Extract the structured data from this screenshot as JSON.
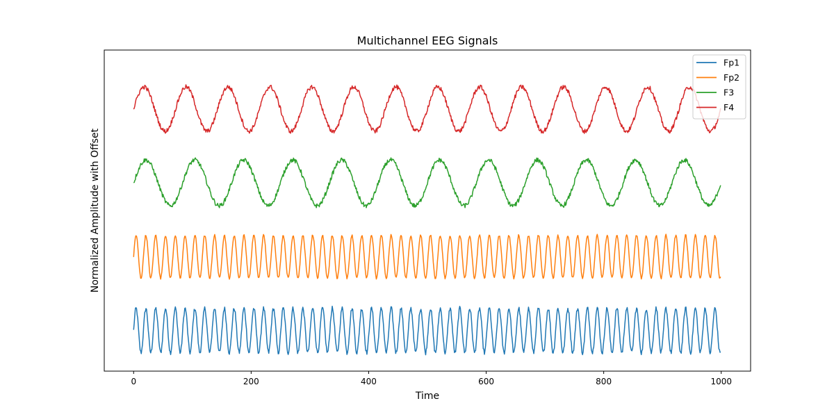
{
  "chart_data": {
    "type": "line",
    "title": "Multichannel EEG Signals",
    "xlabel": "Time",
    "ylabel": "Normalized Amplitude with Offset",
    "xlim": [
      -50,
      1050
    ],
    "ylim": [
      -1.1,
      7.6
    ],
    "x_ticks": [
      0,
      200,
      400,
      600,
      800,
      1000
    ],
    "y_ticks": [],
    "grid": false,
    "legend_position": "top-right",
    "n_samples": 1000,
    "series": [
      {
        "name": "Fp1",
        "color": "#1f77b4",
        "offset": 0,
        "amplitude": 0.6,
        "period_samples": 16.7,
        "noise": 0.06,
        "start_value": 0.0
      },
      {
        "name": "Fp2",
        "color": "#ff7f0e",
        "offset": 2,
        "amplitude": 0.58,
        "period_samples": 16.7,
        "noise": 0.03,
        "start_value": 0.0
      },
      {
        "name": "F3",
        "color": "#2ca02c",
        "offset": 4,
        "amplitude": 0.62,
        "period_samples": 83.3,
        "noise": 0.06,
        "start_value": 0.0
      },
      {
        "name": "F4",
        "color": "#d62728",
        "offset": 6,
        "amplitude": 0.6,
        "period_samples": 71.4,
        "noise": 0.06,
        "start_value": 0.0
      }
    ]
  }
}
